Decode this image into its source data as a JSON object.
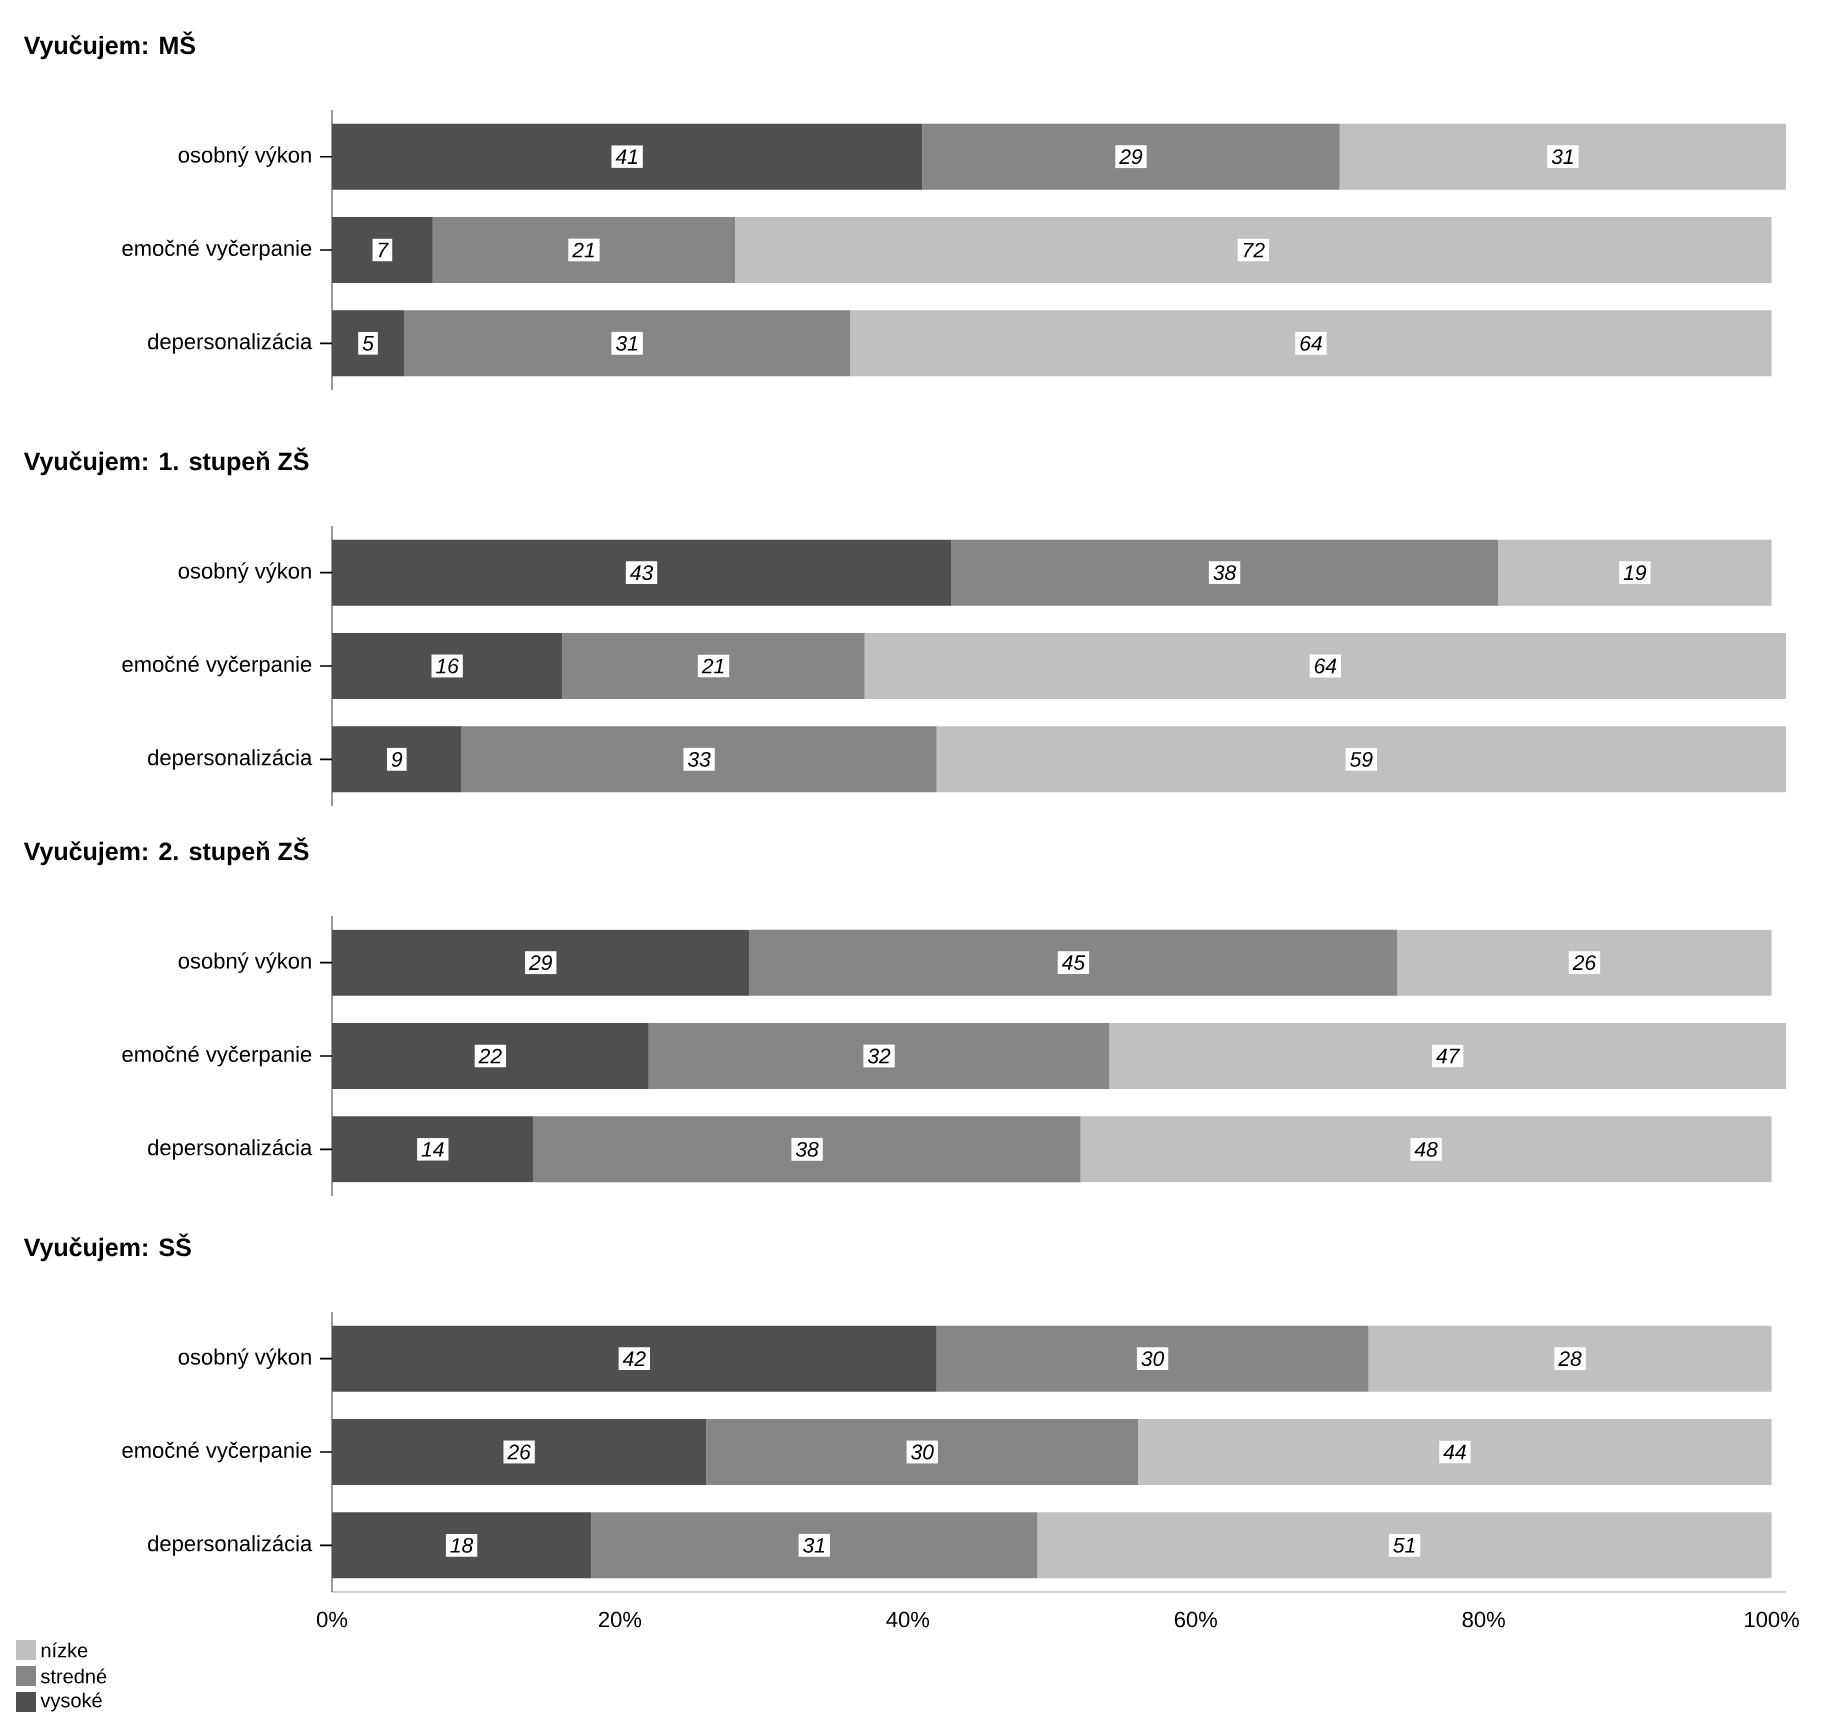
{
  "chart_data": [
    {
      "type": "bar",
      "orientation": "horizontal",
      "stacked": true,
      "data_labels": true,
      "title": "Vyučujem: MŠ",
      "categories": [
        "osobný výkon",
        "emočné vyčerpanie",
        "depersonalizácia"
      ],
      "xlim": [
        0,
        101
      ],
      "tick_labels": "y",
      "series": [
        {
          "color": "#4f4f4f",
          "values": [
            41,
            7,
            5
          ]
        },
        {
          "color": "#868686",
          "values": [
            29,
            21,
            31
          ]
        },
        {
          "color": "#c0c0c0",
          "values": [
            31,
            72,
            64
          ]
        }
      ]
    },
    {
      "type": "bar",
      "orientation": "horizontal",
      "stacked": true,
      "data_labels": true,
      "title": "Vyučujem: 1. stupeň ZŠ",
      "categories": [
        "osobný výkon",
        "emočné vyčerpanie",
        "depersonalizácia"
      ],
      "xlim": [
        0,
        101
      ],
      "tick_labels": "y",
      "series": [
        {
          "color": "#4f4f4f",
          "values": [
            43,
            16,
            9
          ]
        },
        {
          "color": "#868686",
          "values": [
            38,
            21,
            33
          ]
        },
        {
          "color": "#c0c0c0",
          "values": [
            19,
            64,
            59
          ]
        }
      ]
    },
    {
      "type": "bar",
      "orientation": "horizontal",
      "stacked": true,
      "data_labels": true,
      "title": "Vyučujem: 2. stupeň ZŠ",
      "categories": [
        "osobný výkon",
        "emočné vyčerpanie",
        "depersonalizácia"
      ],
      "xlim": [
        0,
        101
      ],
      "tick_labels": "y",
      "series": [
        {
          "color": "#4f4f4f",
          "values": [
            29,
            22,
            14
          ]
        },
        {
          "color": "#868686",
          "values": [
            45,
            32,
            38
          ]
        },
        {
          "color": "#c0c0c0",
          "values": [
            26,
            47,
            48
          ]
        }
      ]
    },
    {
      "type": "bar",
      "orientation": "horizontal",
      "stacked": true,
      "data_labels": true,
      "title": "Vyučujem: SŠ",
      "categories": [
        "osobný výkon",
        "emočné vyčerpanie",
        "depersonalizácia"
      ],
      "xlim": [
        0,
        101
      ],
      "xticks": [
        {
          "value": 0,
          "label": "0%"
        },
        {
          "value": 20,
          "label": "20%"
        },
        {
          "value": 40,
          "label": "40%"
        },
        {
          "value": 60,
          "label": "60%"
        },
        {
          "value": 80,
          "label": "80%"
        },
        {
          "value": 100,
          "label": "100%"
        }
      ],
      "legend": "bottom left",
      "series": [
        {
          "name": "vysoké",
          "color": "#4f4f4f",
          "values": [
            42,
            26,
            18
          ]
        },
        {
          "name": "stredné",
          "color": "#868686",
          "values": [
            30,
            30,
            31
          ]
        },
        {
          "name": "nízke",
          "color": "#c0c0c0",
          "values": [
            28,
            44,
            51
          ]
        }
      ]
    }
  ]
}
